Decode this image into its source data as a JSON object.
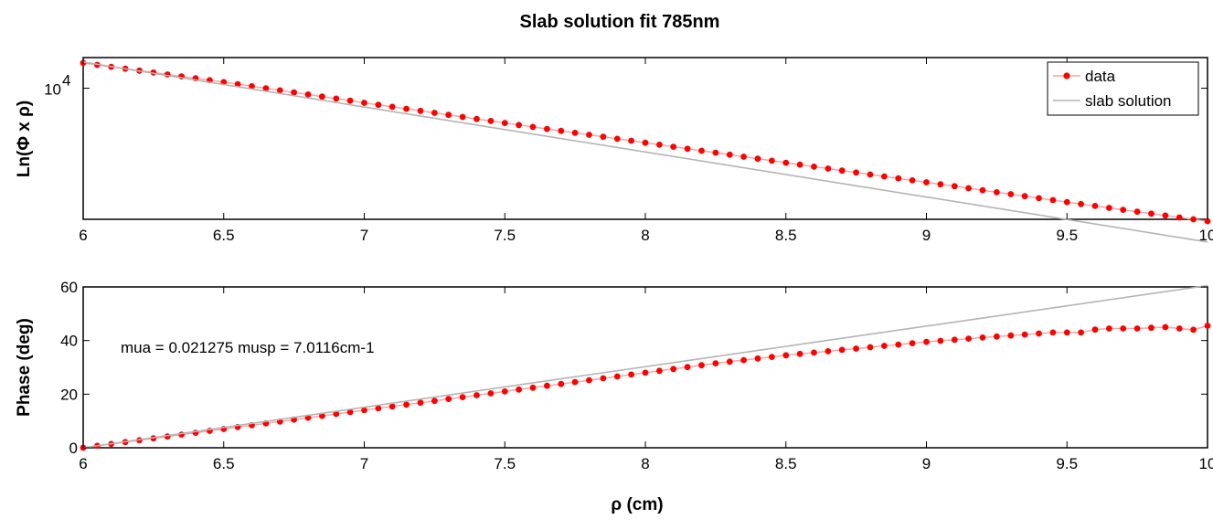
{
  "figure": {
    "title": "Slab solution fit  785nm",
    "xlabel": "ρ (cm)"
  },
  "chart_data": [
    {
      "type": "line",
      "yscale": "log",
      "ylabel": "Ln(Φ x ρ)",
      "xlim": [
        6,
        10
      ],
      "ylim": [
        5300,
        11600
      ],
      "xticks": [
        6,
        6.5,
        7,
        7.5,
        8,
        8.5,
        9,
        9.5,
        10
      ],
      "xtick_labels": [
        "6",
        "6.5",
        "7",
        "7.5",
        "8",
        "8.5",
        "9",
        "9.5",
        "10"
      ],
      "yticks": [
        10000
      ],
      "ytick_base": "10",
      "ytick_exp": "4",
      "grid": false,
      "legend": {
        "placement": "top-right",
        "entries": [
          "data",
          "slab solution"
        ]
      },
      "series": [
        {
          "name": "data",
          "color": "#ff0000",
          "line_color": "#f4a6a6",
          "marker": "circle",
          "x": [
            6.0,
            6.5,
            7.0,
            7.5,
            8.0,
            8.5,
            9.0,
            9.5,
            10.0
          ],
          "y": [
            11300,
            10300,
            9320,
            8450,
            7680,
            6970,
            6340,
            5760,
            5250
          ]
        },
        {
          "name": "slab solution",
          "color": "#b4b4b4",
          "x": [
            6.0,
            10.0
          ],
          "y": [
            11350,
            4750
          ]
        }
      ]
    },
    {
      "type": "line",
      "ylabel": "Phase (deg)",
      "xlim": [
        6,
        10
      ],
      "ylim": [
        0,
        60
      ],
      "xticks": [
        6,
        6.5,
        7,
        7.5,
        8,
        8.5,
        9,
        9.5,
        10
      ],
      "xtick_labels": [
        "6",
        "6.5",
        "7",
        "7.5",
        "8",
        "8.5",
        "9",
        "9.5",
        "10"
      ],
      "yticks": [
        0,
        20,
        40,
        60
      ],
      "ytick_labels": [
        "0",
        "20",
        "40",
        "60"
      ],
      "grid": false,
      "annotation": "mua = 0.021275 musp = 7.0116cm-1",
      "series": [
        {
          "name": "data",
          "color": "#ff0000",
          "line_color": "#f4a6a6",
          "marker": "circle",
          "x": [
            6.0,
            6.25,
            6.5,
            6.75,
            7.0,
            7.25,
            7.5,
            7.75,
            8.0,
            8.25,
            8.5,
            8.75,
            9.0,
            9.25,
            9.45,
            9.55,
            9.62,
            9.68,
            9.75,
            9.85,
            9.95,
            10.0
          ],
          "y": [
            0,
            3.5,
            7,
            10.5,
            14,
            17.5,
            21,
            24.5,
            28,
            31.5,
            34.5,
            37,
            39.5,
            41.5,
            43,
            43,
            44.5,
            44.5,
            44.5,
            45,
            44,
            45.5
          ]
        },
        {
          "name": "slab solution",
          "color": "#b4b4b4",
          "x": [
            6.0,
            10.0
          ],
          "y": [
            0,
            60.5
          ]
        }
      ]
    }
  ]
}
